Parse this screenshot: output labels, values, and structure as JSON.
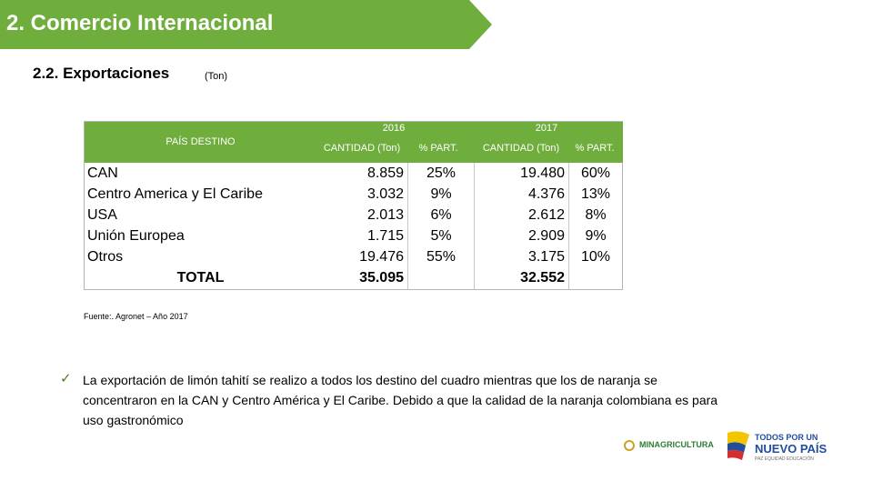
{
  "header": {
    "title": "2. Comercio Internacional",
    "banner_color": "#6fae3c"
  },
  "section": {
    "subtitle": "2.2. Exportaciones",
    "unit": "(Ton)"
  },
  "table": {
    "header_color": "#6fae3c",
    "col_destino": "PAÍS DESTINO",
    "year_2016": "2016",
    "year_2017": "2017",
    "col_qty_2016": "CANTIDAD (Ton)",
    "col_pct_2016": "% PART.",
    "col_qty_2017": "CANTIDAD (Ton)",
    "col_pct_2017": "% PART.",
    "rows": [
      {
        "name": "CAN",
        "q2016": "8.859",
        "p2016": "25%",
        "q2017": "19.480",
        "p2017": "60%"
      },
      {
        "name": "Centro America y El Caribe",
        "q2016": "3.032",
        "p2016": "9%",
        "q2017": "4.376",
        "p2017": "13%"
      },
      {
        "name": "USA",
        "q2016": "2.013",
        "p2016": "6%",
        "q2017": "2.612",
        "p2017": "8%"
      },
      {
        "name": "Unión Europea",
        "q2016": "1.715",
        "p2016": "5%",
        "q2017": "2.909",
        "p2017": "9%"
      },
      {
        "name": "Otros",
        "q2016": "19.476",
        "p2016": "55%",
        "q2017": "3.175",
        "p2017": "10%"
      }
    ],
    "total": {
      "label": "TOTAL",
      "q2016": "35.095",
      "q2017": "32.552"
    }
  },
  "source": "Fuente:. Agronet – Año 2017",
  "note": {
    "bullet": "✓",
    "text": "La exportación de limón tahití se realizo a todos los destino del cuadro mientras que los de naranja se concentraron en la CAN y Centro América y El Caribe. Debido a que la calidad de la naranja colombiana es para uso gastronómico"
  },
  "logos": {
    "ministry": "MINAGRICULTURA",
    "gov_line1": "TODOS POR UN",
    "gov_line2": "NUEVO PAÍS",
    "gov_line3": "PAZ  EQUIDAD  EDUCACIÓN"
  }
}
